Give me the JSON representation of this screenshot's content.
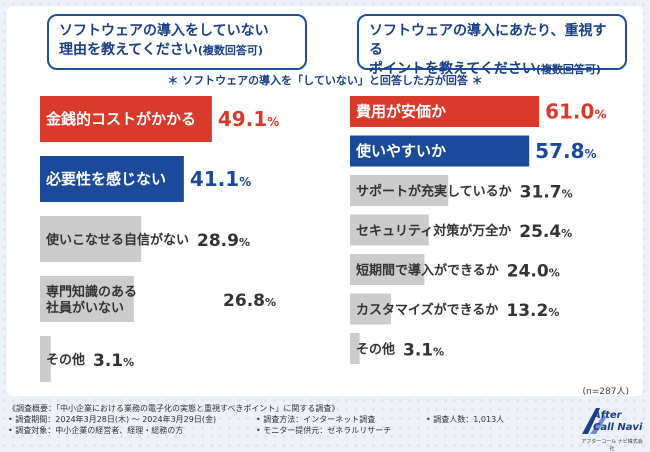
{
  "left_question": {
    "line1": "ソフトウェアの導入をしていない",
    "line2": "理由を教えてください",
    "suffix": "(複数回答可)"
  },
  "right_question": {
    "line1": "ソフトウェアの導入にあたり、重視する",
    "line2": "ポイントを教えてください",
    "suffix": "(複数回答可)"
  },
  "subtitle": "＊ ソフトウェアの導入を「していない」と回答した方が回答 ＊",
  "sample_note": "(n=287人)",
  "colors": {
    "red": "#d83a2c",
    "blue": "#1b4a9a",
    "gray": "#cccccc"
  },
  "chart_data": [
    {
      "type": "bar",
      "orientation": "horizontal",
      "unit": "%",
      "categories": [
        "金銭的コストがかかる",
        "必要性を感じない",
        "使いこなせる自信がない",
        "専門知識のある\n社員がいない",
        "その他"
      ],
      "values": [
        49.1,
        41.1,
        28.9,
        26.8,
        3.1
      ],
      "bar_colors": [
        "red",
        "blue",
        "gray",
        "gray",
        "gray"
      ]
    },
    {
      "type": "bar",
      "orientation": "horizontal",
      "unit": "%",
      "categories": [
        "費用が安価か",
        "使いやすいか",
        "サポートが充実しているか",
        "セキュリティ対策が万全か",
        "短期間で導入ができるか",
        "カスタマイズができるか",
        "その他"
      ],
      "values": [
        61.0,
        57.8,
        31.7,
        25.4,
        24.0,
        13.2,
        3.1
      ],
      "bar_colors": [
        "red",
        "blue",
        "gray",
        "gray",
        "gray",
        "gray",
        "gray"
      ]
    }
  ],
  "footer": {
    "overview": "《調査概要：「中小企業における業務の電子化の実態と重視すべきポイント」に関する調査》",
    "period": "• 調査期間：2024年3月28日(木) ～ 2024年3月29日(金)",
    "method": "• 調査方法：インターネット調査",
    "count": "• 調査人数：1,013人",
    "target": "• 調査対象：中小企業の経営者、経理・総務の方",
    "provider": "• モニター提供元：ゼネラルリサーチ"
  },
  "logo": {
    "line1": "After",
    "line2": "Call Navi",
    "company": "アフターコール ナビ株式会社"
  }
}
